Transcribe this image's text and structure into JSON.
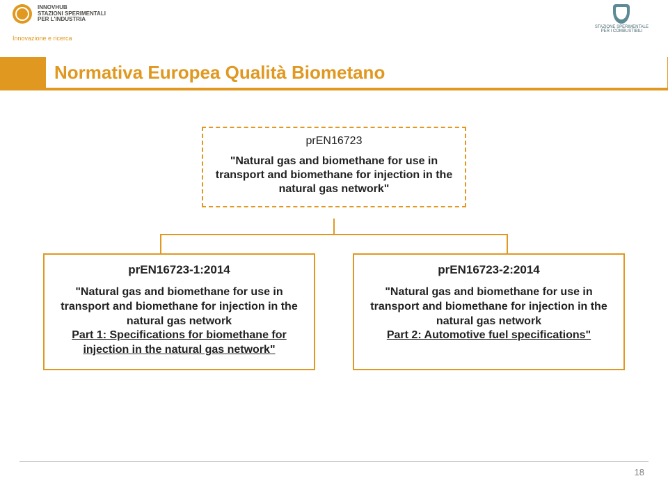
{
  "header": {
    "left_logo": {
      "line1": "INNOVHUB",
      "line2": "STAZIONI SPERIMENTALI",
      "line3": "PER L'INDUSTRIA",
      "tagline": "Innovazione e ricerca"
    },
    "right_logo": {
      "line1": "STAZIONE SPERIMENTALE",
      "line2": "PER I COMBUSTIBILI"
    }
  },
  "title": "Normativa Europea Qualità Biometano",
  "diagram": {
    "top": {
      "code": "prEN16723",
      "title": "\"Natural gas and biomethane for use in transport and biomethane for injection in the natural gas network\""
    },
    "left": {
      "code": "prEN16723-1:2014",
      "title_prefix": "\"Natural gas and biomethane for use in transport and biomethane for injection in the natural gas network",
      "subtitle": "Part 1: Specifications for biomethane for injection in the natural gas network\""
    },
    "right": {
      "code": "prEN16723-2:2014",
      "title_prefix": "\"Natural gas and biomethane for use in transport and biomethane for injection in the natural gas network",
      "subtitle": "Part 2: Automotive fuel specifications\""
    }
  },
  "colors": {
    "accent": "#e09820",
    "text": "#222222",
    "page_bg": "#ffffff"
  },
  "page_number": "18"
}
